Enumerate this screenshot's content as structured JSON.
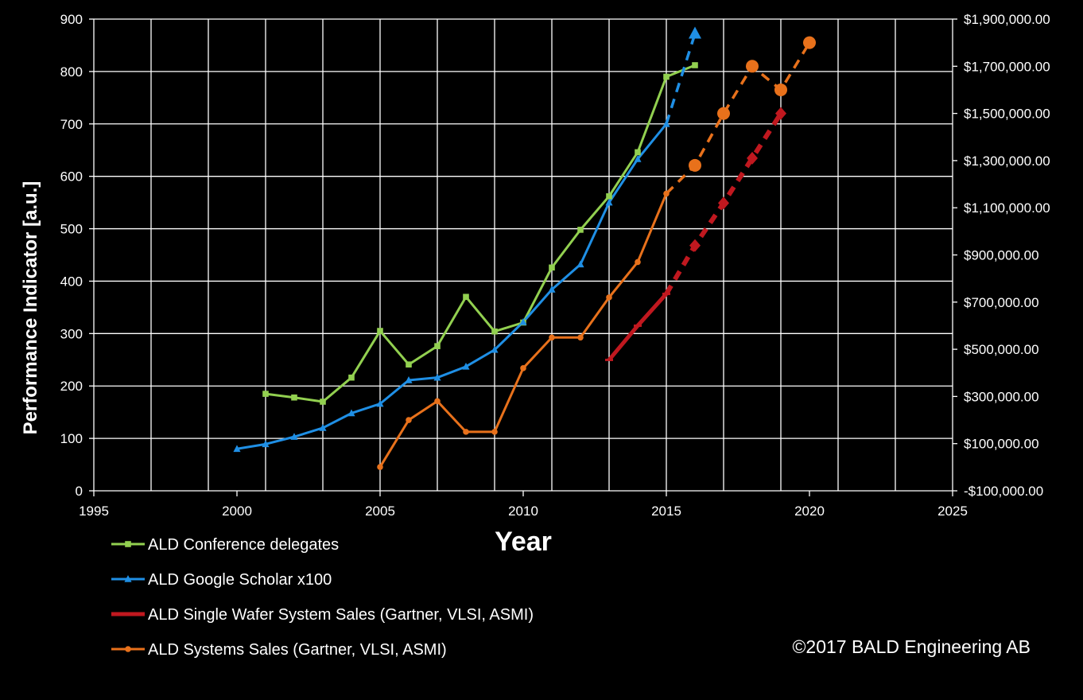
{
  "chart_data": {
    "type": "line",
    "xlabel": "Year",
    "ylabel": "Performance Indicator [a.u.]",
    "xlim": [
      1995,
      2025
    ],
    "ylim": [
      0,
      900
    ],
    "y2lim": [
      -100000,
      1900000
    ],
    "grid": true,
    "legend_position": "bottom-left",
    "x_ticks": [
      "1995",
      "2000",
      "2005",
      "2010",
      "2015",
      "2020",
      "2025"
    ],
    "y_ticks": [
      "0",
      "100",
      "200",
      "300",
      "400",
      "500",
      "600",
      "700",
      "800",
      "900"
    ],
    "y2_ticks": [
      "-$100,000.00",
      "$100,000.00",
      "$300,000.00",
      "$500,000.00",
      "$700,000.00",
      "$900,000.00",
      "$1,100,000.00",
      "$1,300,000.00",
      "$1,500,000.00",
      "$1,700,000.00",
      "$1,900,000.00"
    ],
    "series": [
      {
        "name": "ALD Conference delegates",
        "color": "#92d050",
        "marker": "square",
        "axis": "left",
        "x": [
          2001,
          2002,
          2003,
          2004,
          2005,
          2006,
          2007,
          2008,
          2009,
          2010,
          2011,
          2012,
          2013,
          2014,
          2015,
          2016
        ],
        "y": [
          185,
          178,
          170,
          216,
          305,
          241,
          276,
          370,
          304,
          321,
          426,
          498,
          562,
          646,
          790,
          812
        ]
      },
      {
        "name": "ALD Google Scholar x100",
        "color": "#1f8fe5",
        "marker": "triangle",
        "axis": "left",
        "x": [
          2000,
          2001,
          2002,
          2003,
          2004,
          2005,
          2006,
          2007,
          2008,
          2009,
          2010,
          2011,
          2012,
          2013,
          2014,
          2015
        ],
        "y": [
          80,
          89,
          103,
          120,
          148,
          166,
          211,
          216,
          237,
          269,
          322,
          384,
          432,
          550,
          633,
          700
        ],
        "projection": {
          "x": [
            2015,
            2016
          ],
          "y": [
            700,
            872
          ]
        }
      },
      {
        "name": "ALD Single Wafer System Sales (Gartner, VLSI, ASMI)",
        "color": "#c0181f",
        "marker": "dash",
        "axis": "right",
        "x": [
          2013,
          2014,
          2015
        ],
        "y": [
          455000,
          600000,
          735000
        ],
        "projection": {
          "x": [
            2015,
            2016,
            2017,
            2018,
            2019
          ],
          "y": [
            735000,
            940000,
            1120000,
            1310000,
            1500000
          ]
        }
      },
      {
        "name": "ALD Systems Sales (Gartner, VLSI, ASMI)",
        "color": "#e8711b",
        "marker": "circle",
        "axis": "right",
        "x": [
          2005,
          2006,
          2007,
          2008,
          2009,
          2010,
          2011,
          2012,
          2013,
          2014,
          2015
        ],
        "y": [
          1000,
          200000,
          280000,
          150000,
          150000,
          420000,
          550000,
          550000,
          720000,
          870000,
          1160000
        ],
        "projection": {
          "x": [
            2015,
            2016,
            2017,
            2018,
            2019,
            2020
          ],
          "y": [
            1160000,
            1280000,
            1500000,
            1700000,
            1600000,
            1800000
          ]
        }
      }
    ]
  },
  "copyright": "©2017 BALD Engineering  AB"
}
